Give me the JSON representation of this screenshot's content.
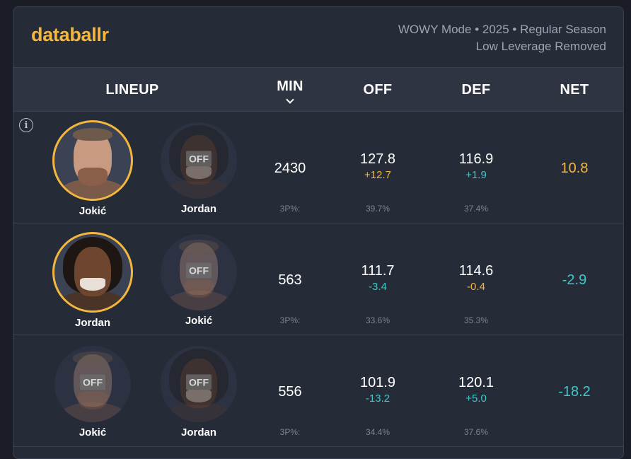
{
  "brand": {
    "logo": "databallr",
    "accent": "#f4b73e"
  },
  "meta": {
    "line1": "WOWY Mode • 2025 • Regular Season",
    "line2": "Low Leverage Removed"
  },
  "columns": {
    "lineup": "LINEUP",
    "min": "MIN",
    "off": "OFF",
    "def": "DEF",
    "net": "NET"
  },
  "off_tag": "OFF",
  "colors": {
    "positive": "#f4b73e",
    "negative": "#3ec9c9"
  },
  "rows": [
    {
      "players": [
        {
          "name": "Jokić",
          "status": "on",
          "icon": "jokic-avatar"
        },
        {
          "name": "Jordan",
          "status": "off",
          "icon": "jordan-avatar"
        }
      ],
      "min": "2430",
      "off": {
        "value": "127.8",
        "delta": "+12.7",
        "tone": "positive"
      },
      "def": {
        "value": "116.9",
        "delta": "+1.9",
        "tone": "negative"
      },
      "net": {
        "value": "10.8",
        "tone": "positive"
      },
      "three_pt_label": "3P%:",
      "off_3p": "39.7%",
      "def_3p": "37.4%"
    },
    {
      "players": [
        {
          "name": "Jordan",
          "status": "on",
          "icon": "jordan-avatar"
        },
        {
          "name": "Jokić",
          "status": "off",
          "icon": "jokic-avatar"
        }
      ],
      "min": "563",
      "off": {
        "value": "111.7",
        "delta": "-3.4",
        "tone": "negative"
      },
      "def": {
        "value": "114.6",
        "delta": "-0.4",
        "tone": "positive"
      },
      "net": {
        "value": "-2.9",
        "tone": "negative"
      },
      "three_pt_label": "3P%:",
      "off_3p": "33.6%",
      "def_3p": "35.3%"
    },
    {
      "players": [
        {
          "name": "Jokić",
          "status": "off",
          "icon": "jokic-avatar"
        },
        {
          "name": "Jordan",
          "status": "off",
          "icon": "jordan-avatar"
        }
      ],
      "min": "556",
      "off": {
        "value": "101.9",
        "delta": "-13.2",
        "tone": "negative"
      },
      "def": {
        "value": "120.1",
        "delta": "+5.0",
        "tone": "negative"
      },
      "net": {
        "value": "-18.2",
        "tone": "negative"
      },
      "three_pt_label": "3P%:",
      "off_3p": "34.4%",
      "def_3p": "37.6%"
    }
  ]
}
